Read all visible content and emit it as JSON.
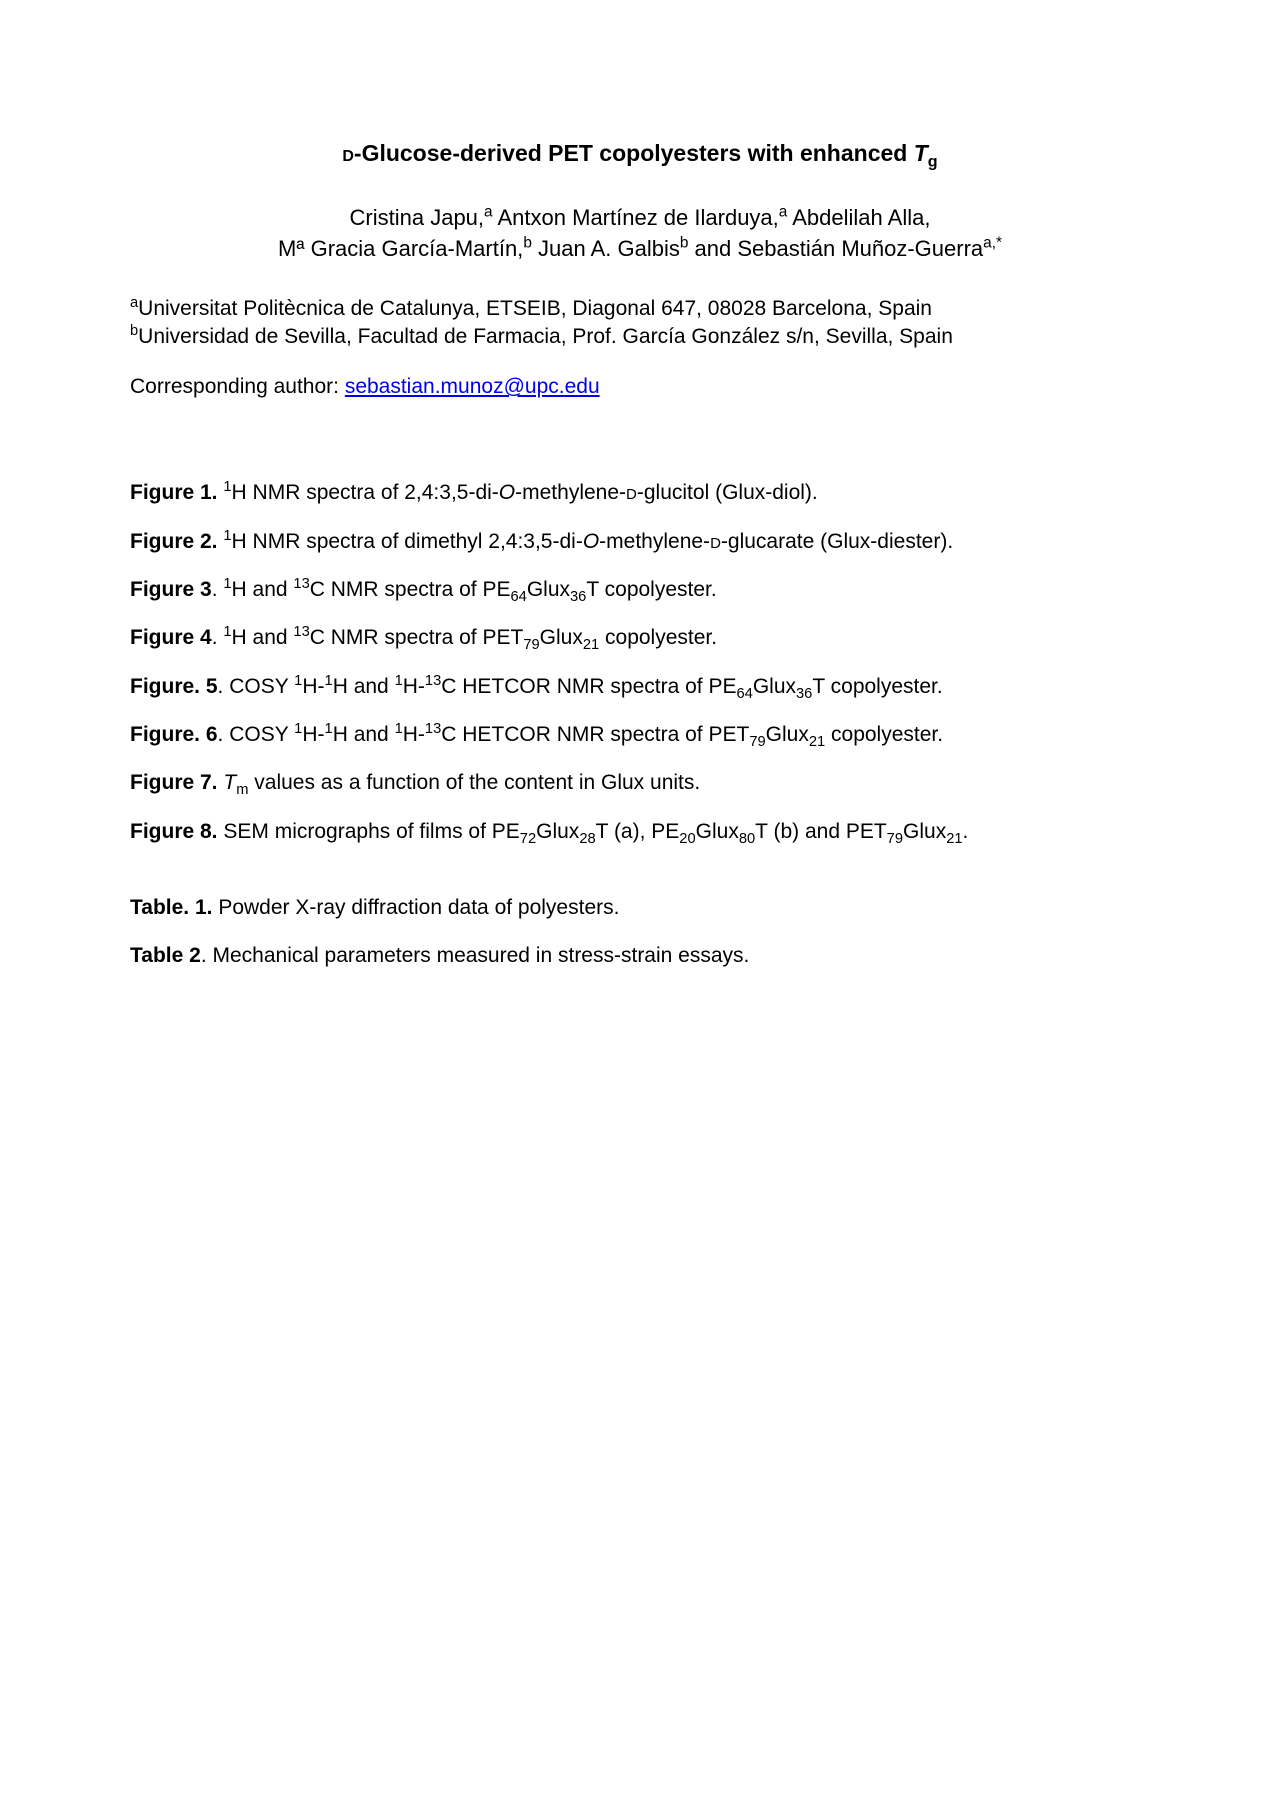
{
  "title": {
    "prefix_sc": "d",
    "main": "-Glucose-derived PET copolyesters with enhanced ",
    "tg_T": "T",
    "tg_g": "g"
  },
  "authors_line1": {
    "a1": "Cristina Japu,",
    "a1_sup": "a",
    "a2": " Antxon Martínez de Ilarduya,",
    "a2_sup": "a",
    "a3": " Abdelilah Alla,"
  },
  "authors_line2": {
    "a4": "Mª Gracia García-Martín,",
    "a4_sup": "b",
    "a5": " Juan A. Galbis",
    "a5_sup": "b",
    "a6": " and Sebastián Muñoz-Guerra",
    "a6_sup": "a,*"
  },
  "affiliations": {
    "a_sup": "a",
    "a_text": "Universitat Politècnica de Catalunya, ETSEIB, Diagonal 647, 08028 Barcelona, Spain",
    "b_sup": "b",
    "b_text": "Universidad de Sevilla, Facultad de Farmacia, Prof. García González s/n, Sevilla, Spain"
  },
  "corresponding": {
    "label": "Corresponding author: ",
    "email": "sebastian.munoz@upc.edu"
  },
  "figures": {
    "f1": {
      "label": "Figure 1. ",
      "pre": "",
      "sup1": "1",
      "t1": "H NMR spectra of 2,4:3,5-di-",
      "ital1": "O",
      "t2": "-methylene-",
      "sc1": "d",
      "t3": "-glucitol (Glux-diol)."
    },
    "f2": {
      "label": "Figure 2. ",
      "sup1": "1",
      "t1": "H NMR spectra of dimethyl 2,4:3,5-di-",
      "ital1": "O",
      "t2": "-methylene-",
      "sc1": "d",
      "t3": "-glucarate (Glux-diester)."
    },
    "f3": {
      "label": "Figure 3",
      "dot": ". ",
      "sup1": "1",
      "t1": "H and ",
      "sup2": "13",
      "t2": "C NMR spectra of PE",
      "sub1": "64",
      "t3": "Glux",
      "sub2": "36",
      "t4": "T copolyester."
    },
    "f4": {
      "label": "Figure 4",
      "dot": ". ",
      "sup1": "1",
      "t1": "H and ",
      "sup2": "13",
      "t2": "C NMR spectra of PET",
      "sub1": "79",
      "t3": "Glux",
      "sub2": "21",
      "t4": " copolyester."
    },
    "f5": {
      "label": "Figure. 5",
      "dot": ". ",
      "t0": "COSY ",
      "sup1": "1",
      "t1": "H-",
      "sup2": "1",
      "t2": "H and ",
      "sup3": "1",
      "t3": "H-",
      "sup4": "13",
      "t4": "C HETCOR NMR spectra of PE",
      "sub1": "64",
      "t5": "Glux",
      "sub2": "36",
      "t6": "T copolyester."
    },
    "f6": {
      "label": "Figure. 6",
      "dot": ". ",
      "t0": "COSY ",
      "sup1": "1",
      "t1": "H-",
      "sup2": "1",
      "t2": "H and ",
      "sup3": "1",
      "t3": "H-",
      "sup4": "13",
      "t4": "C HETCOR NMR spectra of PET",
      "sub1": "79",
      "t5": "Glux",
      "sub2": "21",
      "t6": " copolyester."
    },
    "f7": {
      "label": "Figure 7. ",
      "ital_T": "T",
      "sub_m": "m",
      "t1": " values as a function of the content in Glux units."
    },
    "f8": {
      "label": "Figure 8. ",
      "t0": "SEM micrographs of films of PE",
      "sub1": "72",
      "t1": "Glux",
      "sub2": "28",
      "t2": "T (a), PE",
      "sub3": "20",
      "t3": "Glux",
      "sub4": "80",
      "t4": "T (b) and PET",
      "sub5": "79",
      "t5": "Glux",
      "sub6": "21",
      "t6": "."
    }
  },
  "tables": {
    "t1": {
      "label": "Table. 1. ",
      "text": "Powder X-ray diffraction data of polyesters."
    },
    "t2": {
      "label": "Table 2",
      "dot": ". ",
      "text": "Mechanical parameters measured in stress-strain essays."
    }
  }
}
